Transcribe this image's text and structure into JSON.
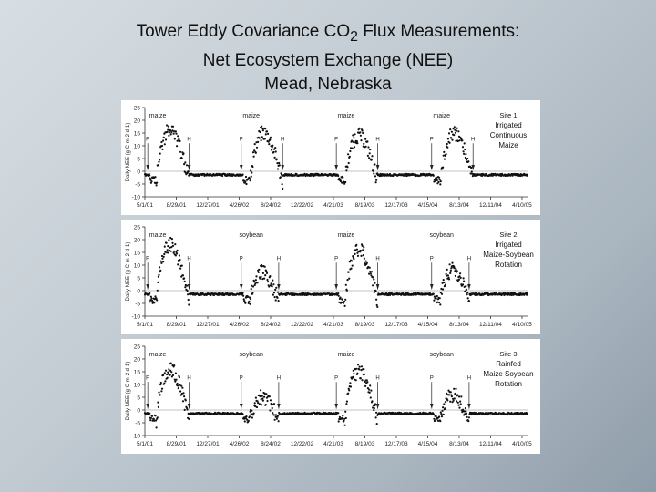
{
  "slide": {
    "title_line1_pre": "Tower Eddy Covariance CO",
    "title_line1_sub": "2",
    "title_line1_post": " Flux Measurements:",
    "title_line2": "Net Ecosystem Exchange (NEE)",
    "title_line3": "Mead, Nebraska"
  },
  "chart_data": [
    {
      "type": "scatter",
      "title": "",
      "ylabel": "Daily NEE (g C m-2 d-1)",
      "ylim": [
        -10,
        25
      ],
      "yticks": [
        -10,
        -5,
        0,
        5,
        10,
        15,
        20,
        25
      ],
      "xticks": [
        "5/1/01",
        "8/29/01",
        "12/27/01",
        "4/26/02",
        "8/24/02",
        "12/22/02",
        "4/21/03",
        "8/19/03",
        "12/17/03",
        "4/15/04",
        "8/13/04",
        "12/11/04",
        "4/10/05"
      ],
      "annotation": [
        "Site 1",
        "Irrigated",
        "Continuous",
        "Maize"
      ],
      "seasons": [
        {
          "crop": "maize",
          "peak": 17,
          "planting": "P",
          "harvest": "H"
        },
        {
          "crop": "maize",
          "peak": 16,
          "planting": "P",
          "harvest": "H"
        },
        {
          "crop": "maize",
          "peak": 15,
          "planting": "P",
          "harvest": "H"
        },
        {
          "crop": "maize",
          "peak": 16,
          "planting": "P",
          "harvest": "H"
        }
      ],
      "series": [
        {
          "values": []
        }
      ]
    },
    {
      "type": "scatter",
      "title": "",
      "ylabel": "Daily NEE (g C m-2 d-1)",
      "ylim": [
        -10,
        25
      ],
      "yticks": [
        -10,
        -5,
        0,
        5,
        10,
        15,
        20,
        25
      ],
      "xticks": [
        "5/1/01",
        "8/29/01",
        "12/27/01",
        "4/26/02",
        "8/24/02",
        "12/22/02",
        "4/21/03",
        "8/19/03",
        "12/17/03",
        "4/15/04",
        "8/13/04",
        "12/11/04",
        "4/10/05"
      ],
      "annotation": [
        "Site 2",
        "Irrigated",
        "Maize-Soybean",
        "Rotation"
      ],
      "seasons": [
        {
          "crop": "maize",
          "peak": 19,
          "planting": "P",
          "harvest": "H"
        },
        {
          "crop": "soybean",
          "peak": 8,
          "planting": "P",
          "harvest": "H"
        },
        {
          "crop": "maize",
          "peak": 17,
          "planting": "P",
          "harvest": "H"
        },
        {
          "crop": "soybean",
          "peak": 9,
          "planting": "P",
          "harvest": "H"
        }
      ],
      "series": [
        {
          "values": []
        }
      ]
    },
    {
      "type": "scatter",
      "title": "",
      "ylabel": "Daily NEE (g C m-2 d-1)",
      "ylim": [
        -10,
        25
      ],
      "yticks": [
        -10,
        -5,
        0,
        5,
        10,
        15,
        20,
        25
      ],
      "xticks": [
        "5/1/01",
        "8/29/01",
        "12/27/01",
        "4/26/02",
        "8/24/02",
        "12/22/02",
        "4/21/03",
        "8/19/03",
        "12/17/03",
        "4/15/04",
        "8/13/04",
        "12/11/04",
        "4/10/05"
      ],
      "annotation": [
        "Site 3",
        "Rainfed",
        "Maize Soybean",
        "Rotation"
      ],
      "seasons": [
        {
          "crop": "maize",
          "peak": 17,
          "planting": "P",
          "harvest": "H"
        },
        {
          "crop": "soybean",
          "peak": 6,
          "planting": "P",
          "harvest": "H"
        },
        {
          "crop": "maize",
          "peak": 16,
          "planting": "P",
          "harvest": "H"
        },
        {
          "crop": "soybean",
          "peak": 7,
          "planting": "P",
          "harvest": "H"
        }
      ],
      "series": [
        {
          "values": []
        }
      ]
    }
  ]
}
